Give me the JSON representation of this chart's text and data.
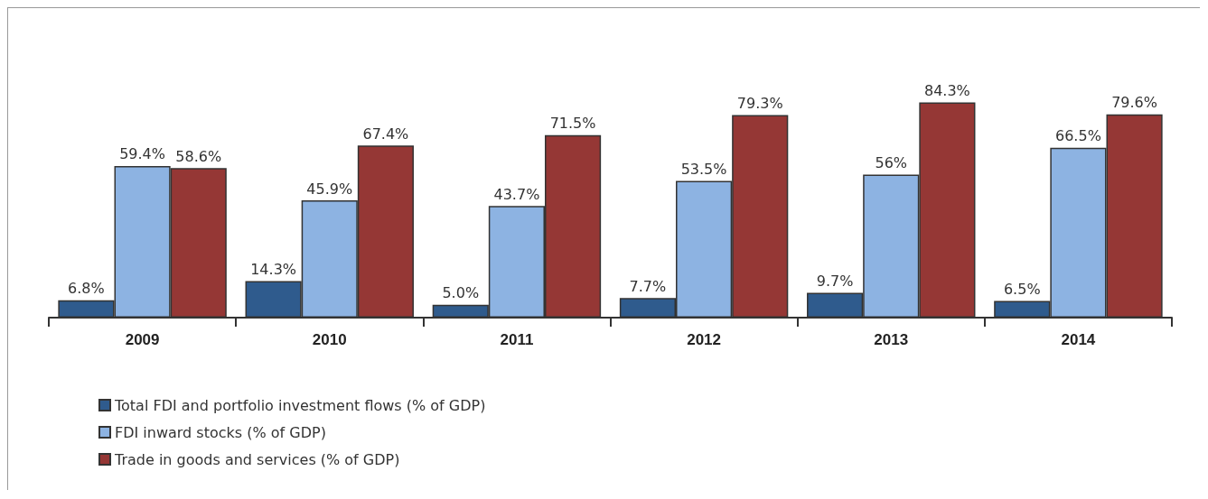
{
  "chart_data": {
    "type": "bar",
    "categories": [
      "2009",
      "2010",
      "2011",
      "2012",
      "2013",
      "2014"
    ],
    "series": [
      {
        "name": "Total FDI and portfolio investment flows (% of GDP)",
        "color": "#2f5b8d",
        "values": [
          6.8,
          14.3,
          5.0,
          7.7,
          9.7,
          6.5
        ],
        "value_labels": [
          "6.8%",
          "14.3%",
          "5.0%",
          "7.7%",
          "9.7%",
          "6.5%"
        ]
      },
      {
        "name": "FDI inward stocks (% of GDP)",
        "color": "#8db3e2",
        "values": [
          59.4,
          45.9,
          43.7,
          53.5,
          56,
          66.5
        ],
        "value_labels": [
          "59.4%",
          "45.9%",
          "43.7%",
          "53.5%",
          "56%",
          "66.5%"
        ]
      },
      {
        "name": "Trade in goods and services (% of GDP)",
        "color": "#953735",
        "values": [
          58.6,
          67.4,
          71.5,
          79.3,
          84.3,
          79.6
        ],
        "value_labels": [
          "58.6%",
          "67.4%",
          "71.5%",
          "79.3%",
          "84.3%",
          "79.6%"
        ]
      }
    ],
    "legend": "bottom left"
  }
}
